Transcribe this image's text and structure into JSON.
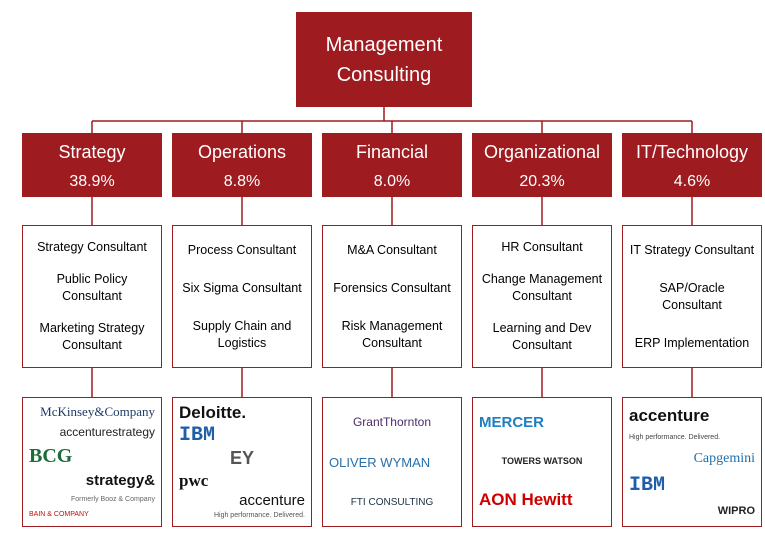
{
  "title": "Management Consulting",
  "branches": [
    {
      "name": "Strategy",
      "share": "38.9%",
      "roles": [
        "Strategy Consultant",
        "Public Policy Consultant",
        "Marketing Strategy Consultant"
      ],
      "logos": [
        "McKinsey&Company",
        "accenturestrategy",
        "BCG",
        "strategy&",
        "Formerly Booz & Company",
        "BAIN & COMPANY"
      ]
    },
    {
      "name": "Operations",
      "share": "8.8%",
      "roles": [
        "Process Consultant",
        "Six Sigma Consultant",
        "Supply Chain and Logistics"
      ],
      "logos": [
        "Deloitte.",
        "IBM",
        "EY",
        "pwc",
        "accenture",
        "High performance. Delivered."
      ]
    },
    {
      "name": "Financial",
      "share": "8.0%",
      "roles": [
        "M&A Consultant",
        "Forensics Consultant",
        "Risk Management Consultant"
      ],
      "logos": [
        "GrantThornton",
        "OLIVER WYMAN",
        "FTI CONSULTING"
      ]
    },
    {
      "name": "Organizational",
      "share": "20.3%",
      "roles": [
        "HR Consultant",
        "Change Management Consultant",
        "Learning and Dev Consultant"
      ],
      "logos": [
        "MERCER",
        "TOWERS WATSON",
        "AON Hewitt"
      ]
    },
    {
      "name": "IT/Technology",
      "share": "4.6%",
      "roles": [
        "IT Strategy Consultant",
        "SAP/Oracle Consultant",
        "ERP Implementation"
      ],
      "logos": [
        "accenture",
        "High performance. Delivered.",
        "Capgemini",
        "IBM",
        "WIPRO"
      ]
    }
  ]
}
